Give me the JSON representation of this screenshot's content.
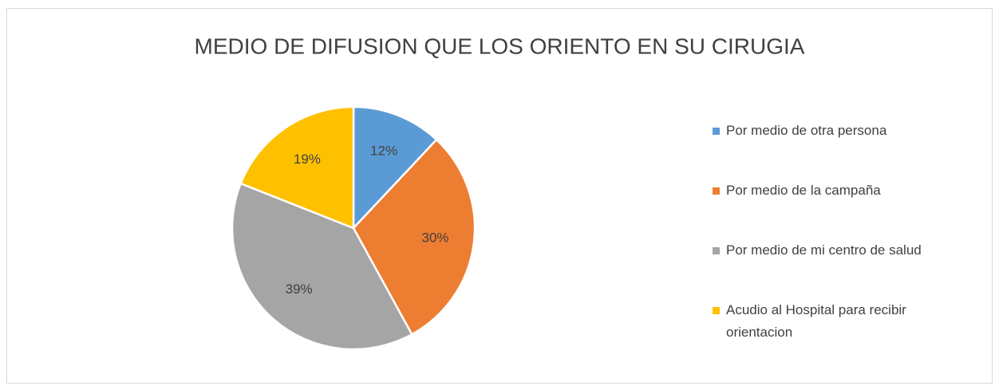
{
  "chart_data": {
    "type": "pie",
    "title": "MEDIO DE DIFUSION QUE LOS ORIENTO EN SU CIRUGIA",
    "categories": [
      "Por medio de otra persona",
      "Por medio de la campaña",
      "Por medio de mi centro de salud",
      "Acudio al Hospital para recibir orientacion"
    ],
    "values": [
      12,
      30,
      39,
      19
    ],
    "value_labels": [
      "12%",
      "30%",
      "39%",
      "19%"
    ],
    "colors": [
      "#5b9bd5",
      "#ed7d31",
      "#a5a5a5",
      "#ffc000"
    ],
    "legend": "right"
  }
}
